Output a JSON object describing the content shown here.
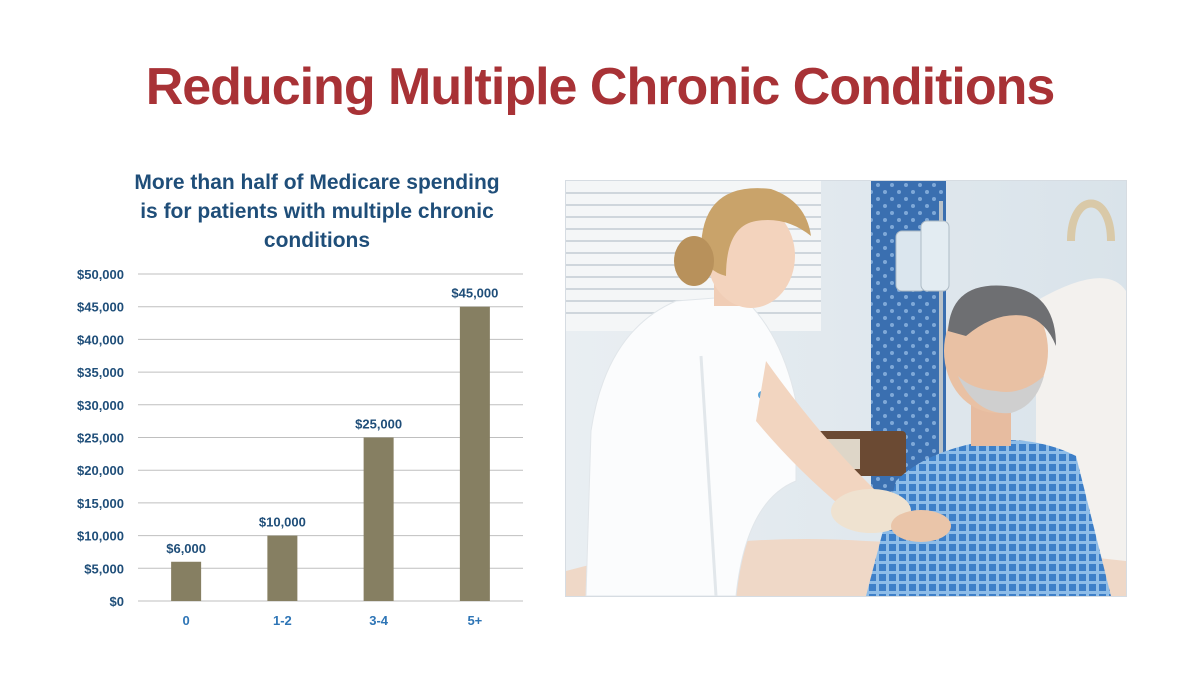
{
  "slide": {
    "title": "Reducing Multiple Chronic Conditions"
  },
  "chart_data": {
    "type": "bar",
    "title": "More than half of Medicare spending is for patients with multiple chronic conditions",
    "categories": [
      "0",
      "1-2",
      "3-4",
      "5+"
    ],
    "values": [
      6000,
      10000,
      25000,
      45000
    ],
    "data_labels": [
      "$6,000",
      "$10,000",
      "$25,000",
      "$45,000"
    ],
    "y_ticks": [
      0,
      5000,
      10000,
      15000,
      20000,
      25000,
      30000,
      35000,
      40000,
      45000,
      50000
    ],
    "y_tick_labels": [
      "$0",
      "$5,000",
      "$10,000",
      "$15,000",
      "$20,000",
      "$25,000",
      "$30,000",
      "$35,000",
      "$40,000",
      "$45,000",
      "$50,000"
    ],
    "ylim": [
      0,
      50000
    ],
    "xlabel": "",
    "ylabel": "",
    "grid": true,
    "legend": "none",
    "bar_color": "#867f62",
    "label_color": "#1f4e79",
    "x_tick_color": "#2e75b6"
  },
  "image": {
    "subject": "nurse caring for smiling elderly male patient in hospital bed",
    "icon": "photo-nurse-patient"
  },
  "colors": {
    "title": "#a83236",
    "chart_title": "#1f4e79",
    "grid": "#bfbfbf"
  }
}
